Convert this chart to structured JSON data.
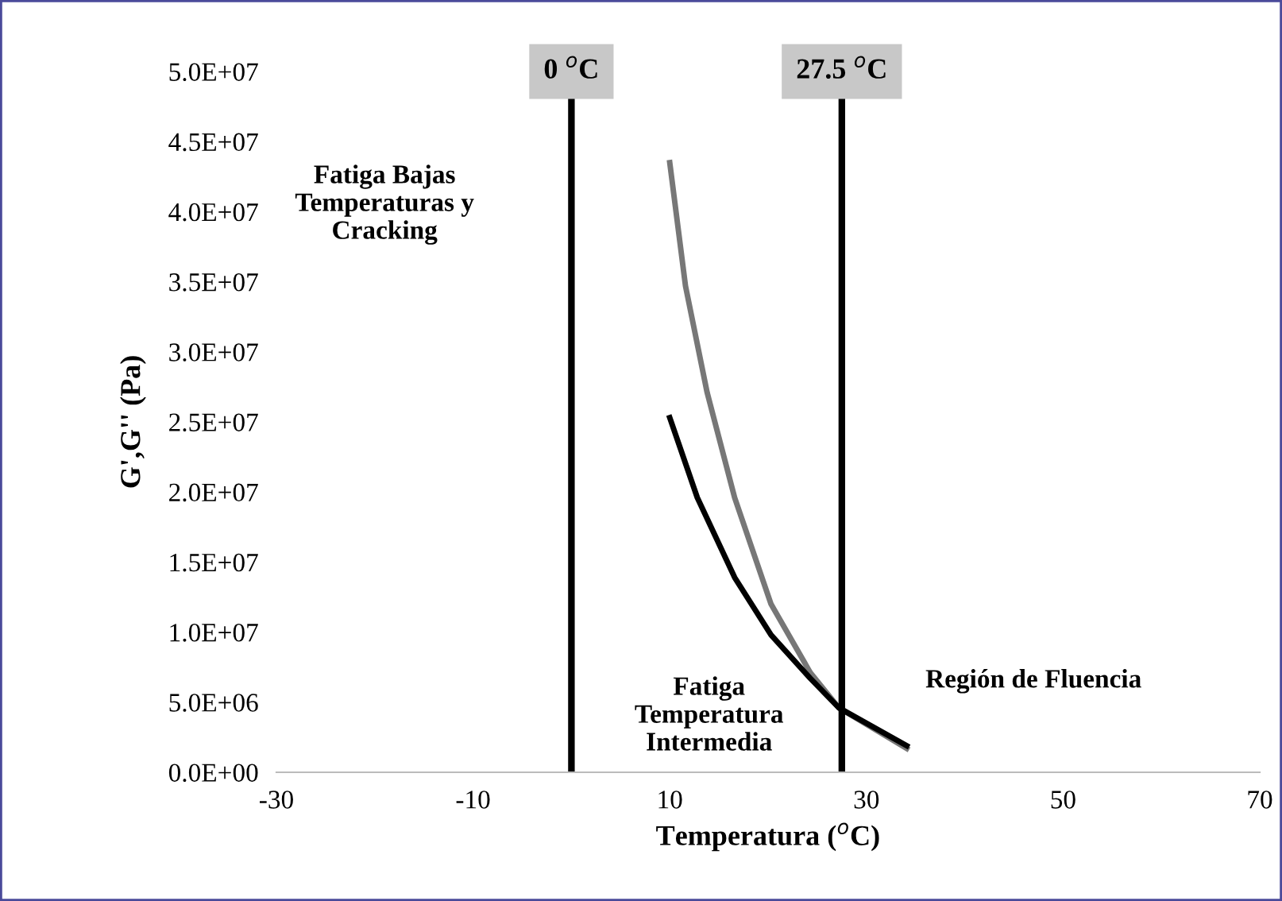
{
  "chart_data": {
    "type": "line",
    "xlabel": "Temperatura ($^{o}$C)",
    "ylabel": "G',G'' (Pa)",
    "xlim": [
      -30,
      70
    ],
    "xticks": [
      -30,
      -10,
      10,
      30,
      50,
      70
    ],
    "ylim": [
      0,
      50000000
    ],
    "yticks": [
      {
        "value": 0,
        "label": "0.0E+00"
      },
      {
        "value": 5000000,
        "label": "5.0E+06"
      },
      {
        "value": 10000000,
        "label": "1.0E+07"
      },
      {
        "value": 15000000,
        "label": "1.5E+07"
      },
      {
        "value": 20000000,
        "label": "2.0E+07"
      },
      {
        "value": 25000000,
        "label": "2.5E+07"
      },
      {
        "value": 30000000,
        "label": "3.0E+07"
      },
      {
        "value": 35000000,
        "label": "3.5E+07"
      },
      {
        "value": 40000000,
        "label": "4.0E+07"
      },
      {
        "value": 45000000,
        "label": "4.5E+07"
      },
      {
        "value": 50000000,
        "label": "5.0E+07"
      }
    ],
    "grid": false,
    "legend": false,
    "marker": "none",
    "line_style": "solid",
    "series": [
      {
        "color": "#777777",
        "x": [
          10,
          11.6,
          13.8,
          16.6,
          20.3,
          24.3,
          27.2,
          34.1
        ],
        "values": [
          43500000,
          34700000,
          27100000,
          19600000,
          12000000,
          7100000,
          4600000,
          1700000
        ]
      },
      {
        "color": "#000000",
        "x": [
          10,
          12.8,
          16.6,
          20.3,
          24.3,
          27.2,
          34.1
        ],
        "values": [
          25300000,
          19600000,
          13900000,
          9800000,
          6700000,
          4600000,
          1900000
        ]
      }
    ],
    "ref_lines": [
      {
        "axis": "x",
        "value": 0,
        "label": "0 $^{o}$C",
        "color": "#000000"
      },
      {
        "axis": "x",
        "value": 27.5,
        "label": "27.5 $^{o}$C",
        "color": "#000000"
      }
    ],
    "annotations": [
      "Fatiga Bajas\nTemperaturas y\nCracking",
      "Fatiga\nTemperatura\nIntermedia",
      "Región de Fluencia"
    ]
  }
}
